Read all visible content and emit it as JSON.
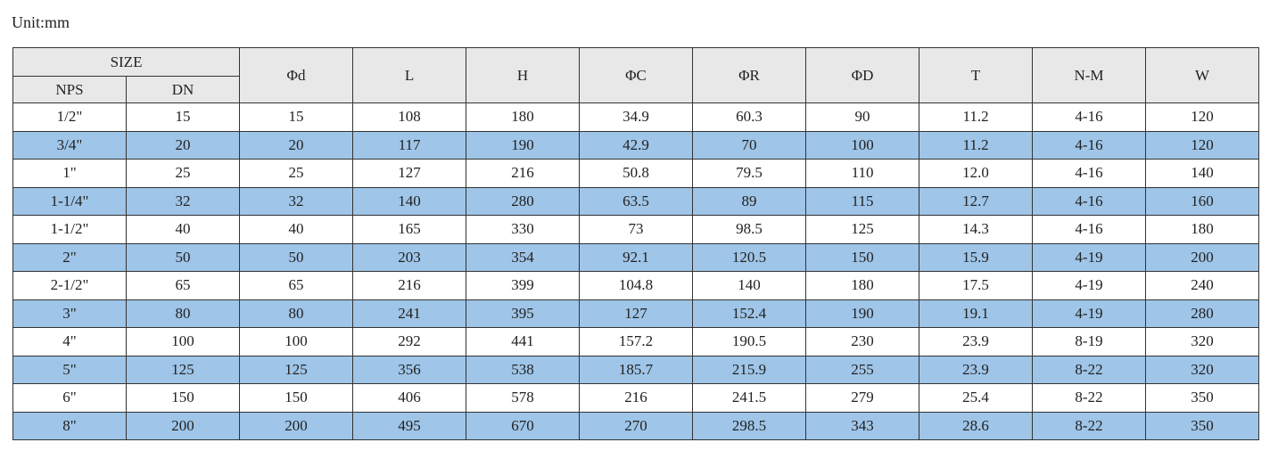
{
  "unit": "Unit:mm",
  "table": {
    "group_header": "SIZE",
    "sub_headers": [
      "NPS",
      "DN"
    ],
    "headers": [
      "Φd",
      "L",
      "H",
      "ΦC",
      "ΦR",
      "ΦD",
      "T",
      "N-M",
      "W"
    ],
    "rows": [
      [
        "1/2\"",
        "15",
        "15",
        "108",
        "180",
        "34.9",
        "60.3",
        "90",
        "11.2",
        "4-16",
        "120"
      ],
      [
        "3/4\"",
        "20",
        "20",
        "117",
        "190",
        "42.9",
        "70",
        "100",
        "11.2",
        "4-16",
        "120"
      ],
      [
        "1\"",
        "25",
        "25",
        "127",
        "216",
        "50.8",
        "79.5",
        "110",
        "12.0",
        "4-16",
        "140"
      ],
      [
        "1-1/4\"",
        "32",
        "32",
        "140",
        "280",
        "63.5",
        "89",
        "115",
        "12.7",
        "4-16",
        "160"
      ],
      [
        "1-1/2\"",
        "40",
        "40",
        "165",
        "330",
        "73",
        "98.5",
        "125",
        "14.3",
        "4-16",
        "180"
      ],
      [
        "2\"",
        "50",
        "50",
        "203",
        "354",
        "92.1",
        "120.5",
        "150",
        "15.9",
        "4-19",
        "200"
      ],
      [
        "2-1/2\"",
        "65",
        "65",
        "216",
        "399",
        "104.8",
        "140",
        "180",
        "17.5",
        "4-19",
        "240"
      ],
      [
        "3\"",
        "80",
        "80",
        "241",
        "395",
        "127",
        "152.4",
        "190",
        "19.1",
        "4-19",
        "280"
      ],
      [
        "4\"",
        "100",
        "100",
        "292",
        "441",
        "157.2",
        "190.5",
        "230",
        "23.9",
        "8-19",
        "320"
      ],
      [
        "5\"",
        "125",
        "125",
        "356",
        "538",
        "185.7",
        "215.9",
        "255",
        "23.9",
        "8-22",
        "320"
      ],
      [
        "6\"",
        "150",
        "150",
        "406",
        "578",
        "216",
        "241.5",
        "279",
        "25.4",
        "8-22",
        "350"
      ],
      [
        "8\"",
        "200",
        "200",
        "495",
        "670",
        "270",
        "298.5",
        "343",
        "28.6",
        "8-22",
        "350"
      ]
    ]
  }
}
